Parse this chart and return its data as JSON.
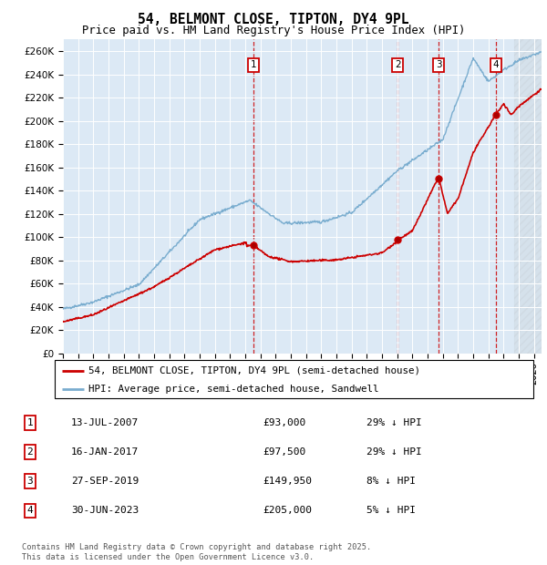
{
  "title": "54, BELMONT CLOSE, TIPTON, DY4 9PL",
  "subtitle": "Price paid vs. HM Land Registry's House Price Index (HPI)",
  "ylim": [
    0,
    270000
  ],
  "yticks": [
    0,
    20000,
    40000,
    60000,
    80000,
    100000,
    120000,
    140000,
    160000,
    180000,
    200000,
    220000,
    240000,
    260000
  ],
  "ytick_labels": [
    "£0",
    "£20K",
    "£40K",
    "£60K",
    "£80K",
    "£100K",
    "£120K",
    "£140K",
    "£160K",
    "£180K",
    "£200K",
    "£220K",
    "£240K",
    "£260K"
  ],
  "xlim_start": 1995.0,
  "xlim_end": 2026.5,
  "chart_bg_color": "#dce9f5",
  "fig_bg_color": "#ffffff",
  "grid_color": "#ffffff",
  "red_line_color": "#cc0000",
  "blue_line_color": "#7aadcf",
  "sale_dates": [
    2007.533,
    2017.042,
    2019.742,
    2023.497
  ],
  "sale_prices": [
    93000,
    97500,
    149950,
    205000
  ],
  "sale_labels": [
    "1",
    "2",
    "3",
    "4"
  ],
  "sale_date_strs": [
    "13-JUL-2007",
    "16-JAN-2017",
    "27-SEP-2019",
    "30-JUN-2023"
  ],
  "sale_price_strs": [
    "£93,000",
    "£97,500",
    "£149,950",
    "£205,000"
  ],
  "sale_hpi_strs": [
    "29% ↓ HPI",
    "29% ↓ HPI",
    "8% ↓ HPI",
    "5% ↓ HPI"
  ],
  "legend_line1": "54, BELMONT CLOSE, TIPTON, DY4 9PL (semi-detached house)",
  "legend_line2": "HPI: Average price, semi-detached house, Sandwell",
  "footer": "Contains HM Land Registry data © Crown copyright and database right 2025.\nThis data is licensed under the Open Government Licence v3.0."
}
